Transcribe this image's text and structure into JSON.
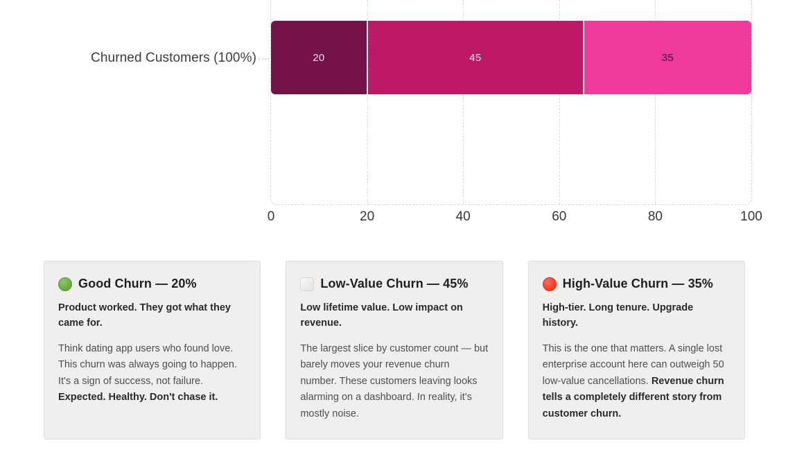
{
  "chart": {
    "row_label": "Churned Customers (100%)",
    "segments": [
      {
        "name": "Good Churn",
        "value": 20,
        "label": "20",
        "color": "#731349",
        "label_color": "#f3dce8"
      },
      {
        "name": "Low-Value Churn",
        "value": 45,
        "label": "45",
        "color": "#bf1a6a",
        "label_color": "#f9e4ee"
      },
      {
        "name": "High-Value Churn",
        "value": 35,
        "label": "35",
        "color": "#f0399c",
        "label_color": "#3d1030"
      }
    ],
    "x_ticks": [
      "0",
      "20",
      "40",
      "60",
      "80",
      "100"
    ]
  },
  "chart_data": {
    "type": "bar",
    "orientation": "horizontal",
    "stacked": true,
    "categories": [
      "Churned Customers (100%)"
    ],
    "series": [
      {
        "name": "Good Churn",
        "values": [
          20
        ],
        "color": "#731349"
      },
      {
        "name": "Low-Value Churn",
        "values": [
          45
        ],
        "color": "#bf1a6a"
      },
      {
        "name": "High-Value Churn",
        "values": [
          35
        ],
        "color": "#f0399c"
      }
    ],
    "data_labels": [
      20,
      45,
      35
    ],
    "xlabel": "",
    "ylabel": "",
    "xlim": [
      0,
      100
    ],
    "x_ticks": [
      0,
      20,
      40,
      60,
      80,
      100
    ],
    "grid": "dashed-vertical",
    "legend_position": "none"
  },
  "cards": [
    {
      "icon": "green-circle",
      "title": "Good Churn — 20%",
      "subtitle": "Product worked. They got what they came for.",
      "body": "Think dating app users who found love. This churn was always going to happen. It's a sign of success, not failure.",
      "body_bold": "Expected. Healthy. Don't chase it."
    },
    {
      "icon": "white-square",
      "title": "Low-Value Churn — 45%",
      "subtitle": "Low lifetime value. Low impact on revenue.",
      "body": "The largest slice by customer count — but barely moves your revenue churn number. These customers leaving looks alarming on a dashboard. In reality, it's mostly noise.",
      "body_bold": ""
    },
    {
      "icon": "red-circle",
      "title": "High-Value Churn — 35%",
      "subtitle": "High-tier. Long tenure. Upgrade history.",
      "body": "This is the one that matters. A single lost enterprise account here can outweigh 50 low-value cancellations.",
      "body_bold": "Revenue churn tells a completely different story from customer churn."
    }
  ]
}
